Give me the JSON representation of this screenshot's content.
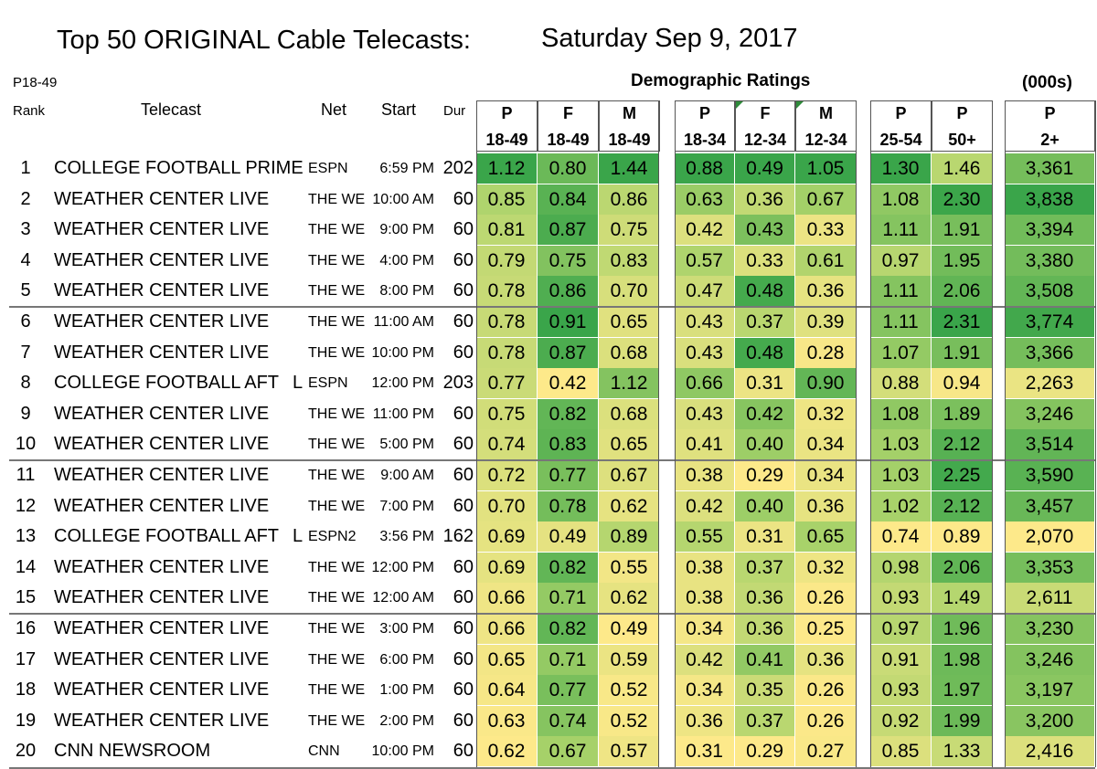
{
  "title": {
    "main": "Top 50 ORIGINAL Cable Telecasts:",
    "date": "Saturday Sep 9, 2017"
  },
  "header": {
    "p1849": "P18-49",
    "rank": "Rank",
    "telecast": "Telecast",
    "net": "Net",
    "start": "Start",
    "dur": "Dur",
    "demo": "Demographic Ratings",
    "thousands": "(000s)"
  },
  "columns": [
    {
      "a": "P",
      "b": "18-49"
    },
    {
      "a": "F",
      "b": "18-49"
    },
    {
      "a": "M",
      "b": "18-49"
    },
    {
      "a": "P",
      "b": "18-34"
    },
    {
      "a": "F",
      "b": "12-34"
    },
    {
      "a": "M",
      "b": "12-34"
    },
    {
      "a": "P",
      "b": "25-54"
    },
    {
      "a": "P",
      "b": "50+"
    },
    {
      "a": "P",
      "b": "2+"
    }
  ],
  "chart_data": {
    "type": "table",
    "title": "Top 50 ORIGINAL Cable Telecasts: Saturday Sep 9, 2017",
    "columns": [
      "P18-49 Rank",
      "Telecast",
      "Net",
      "Start",
      "Dur",
      "P 18-49",
      "F 18-49",
      "M 18-49",
      "P 18-34",
      "F 12-34",
      "M 12-34",
      "P 25-54",
      "P 50+",
      "P 2+"
    ],
    "rows": [
      {
        "rank": "1",
        "telecast": "COLLEGE FOOTBALL PRIME",
        "l": "",
        "net": "ESPN",
        "start": "6:59 PM",
        "dur": "202",
        "values": [
          "1.12",
          "0.80",
          "1.44",
          "0.88",
          "0.49",
          "1.05",
          "1.30",
          "1.46",
          "3,361"
        ]
      },
      {
        "rank": "2",
        "telecast": "WEATHER CENTER LIVE",
        "l": "",
        "net": "THE WE",
        "start": "10:00 AM",
        "dur": "60",
        "values": [
          "0.85",
          "0.84",
          "0.86",
          "0.63",
          "0.36",
          "0.67",
          "1.08",
          "2.30",
          "3,838"
        ]
      },
      {
        "rank": "3",
        "telecast": "WEATHER CENTER LIVE",
        "l": "",
        "net": "THE WE",
        "start": "9:00 PM",
        "dur": "60",
        "values": [
          "0.81",
          "0.87",
          "0.75",
          "0.42",
          "0.43",
          "0.33",
          "1.11",
          "1.91",
          "3,394"
        ]
      },
      {
        "rank": "4",
        "telecast": "WEATHER CENTER LIVE",
        "l": "",
        "net": "THE WE",
        "start": "4:00 PM",
        "dur": "60",
        "values": [
          "0.79",
          "0.75",
          "0.83",
          "0.57",
          "0.33",
          "0.61",
          "0.97",
          "1.95",
          "3,380"
        ]
      },
      {
        "rank": "5",
        "telecast": "WEATHER CENTER LIVE",
        "l": "",
        "net": "THE WE",
        "start": "8:00 PM",
        "dur": "60",
        "values": [
          "0.78",
          "0.86",
          "0.70",
          "0.47",
          "0.48",
          "0.36",
          "1.11",
          "2.06",
          "3,508"
        ]
      },
      {
        "rank": "6",
        "telecast": "WEATHER CENTER LIVE",
        "l": "",
        "net": "THE WE",
        "start": "11:00 AM",
        "dur": "60",
        "values": [
          "0.78",
          "0.91",
          "0.65",
          "0.43",
          "0.37",
          "0.39",
          "1.11",
          "2.31",
          "3,774"
        ]
      },
      {
        "rank": "7",
        "telecast": "WEATHER CENTER LIVE",
        "l": "",
        "net": "THE WE",
        "start": "10:00 PM",
        "dur": "60",
        "values": [
          "0.78",
          "0.87",
          "0.68",
          "0.43",
          "0.48",
          "0.28",
          "1.07",
          "1.91",
          "3,366"
        ]
      },
      {
        "rank": "8",
        "telecast": "COLLEGE FOOTBALL AFT",
        "l": "L",
        "net": "ESPN",
        "start": "12:00 PM",
        "dur": "203",
        "values": [
          "0.77",
          "0.42",
          "1.12",
          "0.66",
          "0.31",
          "0.90",
          "0.88",
          "0.94",
          "2,263"
        ]
      },
      {
        "rank": "9",
        "telecast": "WEATHER CENTER LIVE",
        "l": "",
        "net": "THE WE",
        "start": "11:00 PM",
        "dur": "60",
        "values": [
          "0.75",
          "0.82",
          "0.68",
          "0.43",
          "0.42",
          "0.32",
          "1.08",
          "1.89",
          "3,246"
        ]
      },
      {
        "rank": "10",
        "telecast": "WEATHER CENTER LIVE",
        "l": "",
        "net": "THE WE",
        "start": "5:00 PM",
        "dur": "60",
        "values": [
          "0.74",
          "0.83",
          "0.65",
          "0.41",
          "0.40",
          "0.34",
          "1.03",
          "2.12",
          "3,514"
        ]
      },
      {
        "rank": "11",
        "telecast": "WEATHER CENTER LIVE",
        "l": "",
        "net": "THE WE",
        "start": "9:00 AM",
        "dur": "60",
        "values": [
          "0.72",
          "0.77",
          "0.67",
          "0.38",
          "0.29",
          "0.34",
          "1.03",
          "2.25",
          "3,590"
        ]
      },
      {
        "rank": "12",
        "telecast": "WEATHER CENTER LIVE",
        "l": "",
        "net": "THE WE",
        "start": "7:00 PM",
        "dur": "60",
        "values": [
          "0.70",
          "0.78",
          "0.62",
          "0.42",
          "0.40",
          "0.36",
          "1.02",
          "2.12",
          "3,457"
        ]
      },
      {
        "rank": "13",
        "telecast": "COLLEGE FOOTBALL AFT",
        "l": "L",
        "net": "ESPN2",
        "start": "3:56 PM",
        "dur": "162",
        "values": [
          "0.69",
          "0.49",
          "0.89",
          "0.55",
          "0.31",
          "0.65",
          "0.74",
          "0.89",
          "2,070"
        ]
      },
      {
        "rank": "14",
        "telecast": "WEATHER CENTER LIVE",
        "l": "",
        "net": "THE WE",
        "start": "12:00 PM",
        "dur": "60",
        "values": [
          "0.69",
          "0.82",
          "0.55",
          "0.38",
          "0.37",
          "0.32",
          "0.98",
          "2.06",
          "3,353"
        ]
      },
      {
        "rank": "15",
        "telecast": "WEATHER CENTER LIVE",
        "l": "",
        "net": "THE WE",
        "start": "12:00 AM",
        "dur": "60",
        "values": [
          "0.66",
          "0.71",
          "0.62",
          "0.38",
          "0.36",
          "0.26",
          "0.93",
          "1.49",
          "2,611"
        ]
      },
      {
        "rank": "16",
        "telecast": "WEATHER CENTER LIVE",
        "l": "",
        "net": "THE WE",
        "start": "3:00 PM",
        "dur": "60",
        "values": [
          "0.66",
          "0.82",
          "0.49",
          "0.34",
          "0.36",
          "0.25",
          "0.97",
          "1.96",
          "3,230"
        ]
      },
      {
        "rank": "17",
        "telecast": "WEATHER CENTER LIVE",
        "l": "",
        "net": "THE WE",
        "start": "6:00 PM",
        "dur": "60",
        "values": [
          "0.65",
          "0.71",
          "0.59",
          "0.42",
          "0.41",
          "0.36",
          "0.91",
          "1.98",
          "3,246"
        ]
      },
      {
        "rank": "18",
        "telecast": "WEATHER CENTER LIVE",
        "l": "",
        "net": "THE WE",
        "start": "1:00 PM",
        "dur": "60",
        "values": [
          "0.64",
          "0.77",
          "0.52",
          "0.34",
          "0.35",
          "0.26",
          "0.93",
          "1.97",
          "3,197"
        ]
      },
      {
        "rank": "19",
        "telecast": "WEATHER CENTER LIVE",
        "l": "",
        "net": "THE WE",
        "start": "2:00 PM",
        "dur": "60",
        "values": [
          "0.63",
          "0.74",
          "0.52",
          "0.36",
          "0.37",
          "0.26",
          "0.92",
          "1.99",
          "3,200"
        ]
      },
      {
        "rank": "20",
        "telecast": "CNN NEWSROOM",
        "l": "",
        "net": "CNN",
        "start": "10:00 PM",
        "dur": "60",
        "values": [
          "0.62",
          "0.67",
          "0.57",
          "0.31",
          "0.29",
          "0.27",
          "0.85",
          "1.33",
          "2,416"
        ]
      }
    ]
  },
  "colors": {
    "high": "#3aa54a",
    "mid": "#a8d26a",
    "low": "#fde98a",
    "separator": "#777777"
  }
}
